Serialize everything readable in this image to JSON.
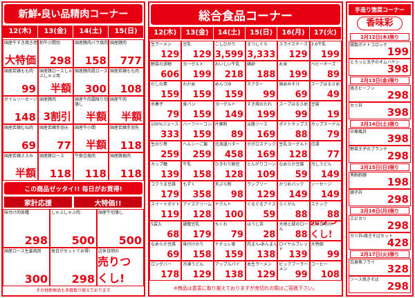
{
  "left": {
    "header": "新鮮・良い品精肉コーナー",
    "dates": [
      "12(木)",
      "13(金)",
      "14(土)",
      "15(日)"
    ],
    "columns": [
      [
        {
          "name": "国産牛すき焼き用",
          "price": "大特価"
        },
        {
          "name": "国産若鶏もも肉",
          "price": "99"
        },
        {
          "name": "ボイルソーセージ",
          "price": "148"
        },
        {
          "name": "国産若鶏むね肉",
          "price": "69"
        },
        {
          "name": "国産若鶏ささみ",
          "price": "半額"
        }
      ],
      [
        {
          "name": "和牛小間切",
          "price": "298"
        },
        {
          "name": "国産豚ロースしゃぶしゃぶ用",
          "price": "半額"
        },
        {
          "name": "国産豚肉",
          "price": "3割引"
        },
        {
          "name": "国産若鶏手羽元",
          "price": "77"
        },
        {
          "name": "国産豚ロース",
          "price": "118"
        }
      ],
      [
        {
          "name": "国産豚肉バラ焼肉",
          "price": "158"
        },
        {
          "name": "国産豚肉肩ロース",
          "price": "300"
        },
        {
          "name": "国産牛肉霜降り切落し",
          "price": "半額"
        },
        {
          "name": "国産牛小間",
          "price": "半額"
        },
        {
          "name": "牛筋合挽肉",
          "price": "118"
        }
      ],
      [
        {
          "name": "国産豚肉",
          "price": "777"
        },
        {
          "name": "国産若鶏もも肉",
          "price": "108"
        },
        {
          "name": "国産牛肉",
          "price": "半額"
        },
        {
          "name": "国産若鶏手羽先",
          "price": "118"
        },
        {
          "name": "国産豚挽肉",
          "price": "118"
        }
      ]
    ],
    "banner": "この商品ゼッタイ!! 毎日がお買得!",
    "bottom_heads": [
      "家計応援",
      "大特価!!"
    ],
    "bottom_items": [
      {
        "name": "味付け肉各種",
        "price": "298"
      },
      {
        "name": "しゃぶしゃぶ肉",
        "price": "500"
      },
      {
        "name": "国産牛切落し",
        "price": "500"
      },
      {
        "name": "国産ロース生姜焼用",
        "price": "300"
      },
      {
        "name": "毎日がセットでお得!",
        "price": "298"
      },
      {
        "name": "店休日明の",
        "price": "売りつくし!"
      }
    ],
    "footer": "その他新鮮品も多数取り揃えております"
  },
  "middle": {
    "header": "総合食品コーナー",
    "dates": [
      "12(木)",
      "13(金)",
      "14(土)",
      "15(日)",
      "16(月)",
      "17(火)"
    ],
    "columns": [
      [
        {
          "name": "生ラーメン",
          "price": "129"
        },
        {
          "name": "野菜の漬物",
          "price": "606"
        },
        {
          "name": "だしの素",
          "price": "159"
        },
        {
          "name": "水菓子",
          "price": "79"
        },
        {
          "name": "100%ジュース",
          "price": "333"
        },
        {
          "name": "生のり巻",
          "price": "259"
        },
        {
          "name": "カップ麺",
          "price": "139"
        },
        {
          "name": "コクうま豆腐",
          "price": "179"
        },
        {
          "name": "スイートポテト",
          "price": "119"
        },
        {
          "name": "5袋入",
          "price": "68"
        },
        {
          "name": "なめらか豆腐",
          "price": "69"
        },
        {
          "name": "ロングバー",
          "price": "178"
        }
      ],
      [
        {
          "name": "豆乳",
          "price": "129"
        },
        {
          "name": "ヨーグルト",
          "price": "199"
        },
        {
          "name": "わかめ",
          "price": "159"
        },
        {
          "name": "食パン",
          "price": "159"
        },
        {
          "name": "ハーフベーコン",
          "price": "159"
        },
        {
          "name": "ヘルシーご飯",
          "price": "259"
        },
        {
          "name": "牛乳",
          "price": "158"
        },
        {
          "name": "もずく",
          "price": "358"
        },
        {
          "name": "アイスクリーム",
          "price": "128"
        },
        {
          "name": "調整豆乳",
          "price": "179"
        },
        {
          "name": "味付けのり",
          "price": "158"
        },
        {
          "name": "冷凍うどん",
          "price": "129"
        }
      ],
      [
        {
          "name": "こしひかり",
          "price": "3,599"
        },
        {
          "name": "おいしい牛乳",
          "price": "218"
        },
        {
          "name": "めんつゆ",
          "price": "159"
        },
        {
          "name": "ヨーグルト",
          "price": "149"
        },
        {
          "name": "片栗粉",
          "price": "89"
        },
        {
          "name": "北海道バター",
          "price": "458"
        },
        {
          "name": "ひきわり納豆",
          "price": "128"
        },
        {
          "name": "天ぷら粉",
          "price": "98"
        },
        {
          "name": "ヤクルト",
          "price": "100"
        },
        {
          "name": "ちくわ",
          "price": "79"
        },
        {
          "name": "ナチュレ恵",
          "price": "159"
        },
        {
          "name": "アップルパイ",
          "price": "138"
        }
      ],
      [
        {
          "name": "まつしぐら",
          "price": "3,333"
        },
        {
          "name": "鶏卵",
          "price": "188"
        },
        {
          "name": "ネクター",
          "price": "99"
        },
        {
          "name": "すき焼のたれ",
          "price": "199"
        },
        {
          "name": "淡路ソース",
          "price": "169"
        },
        {
          "name": "ポポロスナック",
          "price": "169"
        },
        {
          "name": "とんがりコーン",
          "price": "109"
        },
        {
          "name": "ランプリー",
          "price": "129"
        },
        {
          "name": "ぐるぐるアイス",
          "price": "59"
        },
        {
          "name": "ほうじ茶",
          "price": "28"
        },
        {
          "name": "肉まん・あんまん",
          "price": "138"
        },
        {
          "name": "本生ラーメン",
          "price": "129"
        }
      ],
      [
        {
          "name": "スライスチーズ",
          "price": "129"
        },
        {
          "name": "お米",
          "price": "199"
        },
        {
          "name": "固めみそ汁",
          "price": "69"
        },
        {
          "name": "スープはるさめ",
          "price": "99"
        },
        {
          "name": "ポテトチップス",
          "price": "88"
        },
        {
          "name": "生乳ヨーグルト",
          "price": "128"
        },
        {
          "name": "なめらか豆腐",
          "price": "59"
        },
        {
          "name": "かつおパック",
          "price": "149"
        },
        {
          "name": "らくがん",
          "price": "88"
        },
        {
          "name": "大地と緑のロール",
          "price": "88"
        },
        {
          "name": "ロイヤルブレッド",
          "price": "139"
        },
        {
          "name": "ビックブーラーメン",
          "price": "99"
        }
      ],
      [
        {
          "name": "3.6牛乳",
          "price": "199"
        },
        {
          "name": "ベビーチーズ",
          "price": "89"
        },
        {
          "name": "スープはるさめ",
          "price": "49"
        },
        {
          "name": "豆腐",
          "price": "19"
        },
        {
          "name": "カップヌードル",
          "price": "79"
        },
        {
          "name": "白湯",
          "price": "77"
        },
        {
          "name": "冷しうどん",
          "price": "149"
        },
        {
          "name": "ソーセージ",
          "price": "149"
        },
        {
          "name": "スナック",
          "price": "88"
        },
        {
          "name": "店休日明の",
          "price": "売りつくし!"
        },
        {
          "name": "大特価",
          "price": "99"
        },
        {
          "name": "コーヒー",
          "price": "108"
        }
      ]
    ],
    "footer": "※商品は豊富に取り揃えておりますが売切れの際はご容赦下さい。"
  },
  "right": {
    "header": "手造り惣菜コーナー",
    "logo": "香味彩",
    "sections": [
      {
        "date": "2月12日(木)限り",
        "items": [
          {
            "name": "既製ポテトコロッケ",
            "price": "199"
          },
          {
            "name": "とろっと玉子のオムハヤシ",
            "price": "398"
          }
        ]
      },
      {
        "date": "2月13日(金)限り",
        "items": [
          {
            "name": "焼きビーフン",
            "price": "298"
          },
          {
            "name": "カツ丼",
            "price": "398"
          }
        ]
      },
      {
        "date": "2月14日(土)限り",
        "items": [
          {
            "name": "中華風丼",
            "price": "398"
          },
          {
            "name": "野菜王子のブランチ",
            "price": "298"
          }
        ]
      },
      {
        "date": "2月15日(日)限り",
        "items": [
          {
            "name": "黒酢酢豚",
            "price": "198"
          },
          {
            "name": "親子丼",
            "price": "298"
          }
        ]
      },
      {
        "date": "2月16日(月)限り",
        "items": [
          {
            "name": "エビカツ",
            "price": "298"
          },
          {
            "name": "カツ丼・焼きそばセット",
            "price": "428"
          }
        ]
      },
      {
        "date": "2月17日(火)限り",
        "items": [
          {
            "name": "白身魚フライ",
            "price": "328"
          },
          {
            "name": "ソース焼きそば",
            "price": "298"
          }
        ]
      }
    ]
  }
}
